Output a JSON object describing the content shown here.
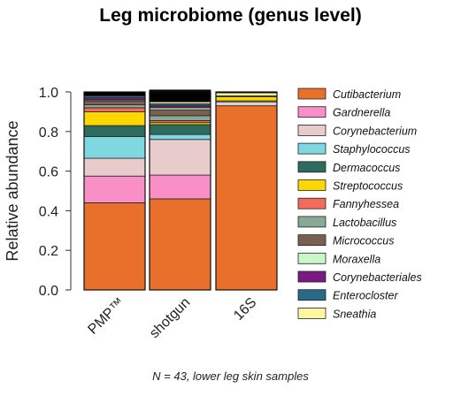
{
  "chart_data": {
    "type": "bar",
    "stacked": true,
    "title": "Leg microbiome (genus level)",
    "ylabel": "Relative abundance",
    "xlabel": "",
    "ylim": [
      0,
      1.0
    ],
    "yticks": [
      "0.0",
      "0.2",
      "0.4",
      "0.6",
      "0.8",
      "1.0"
    ],
    "categories": [
      "PMP™",
      "shotgun",
      "16S"
    ],
    "series": [
      {
        "name": "Cutibacterium",
        "color": "#e8702a",
        "values": [
          0.44,
          0.46,
          0.93
        ]
      },
      {
        "name": "Gardnerella",
        "color": "#f98fc6",
        "values": [
          0.135,
          0.12,
          0.0
        ]
      },
      {
        "name": "Corynebacterium",
        "color": "#e8cccc",
        "values": [
          0.09,
          0.18,
          0.02
        ]
      },
      {
        "name": "Staphylococcus",
        "color": "#7fd8e0",
        "values": [
          0.11,
          0.025,
          0.005
        ]
      },
      {
        "name": "Dermacoccus",
        "color": "#2d6b5e",
        "values": [
          0.055,
          0.05,
          0.0
        ]
      },
      {
        "name": "Streptococcus",
        "color": "#ffd700",
        "values": [
          0.07,
          0.01,
          0.02
        ]
      },
      {
        "name": "Fannyhessea",
        "color": "#f26b5b",
        "values": [
          0.02,
          0.01,
          0.0
        ]
      },
      {
        "name": "Lactobacillus",
        "color": "#8aa898",
        "values": [
          0.015,
          0.025,
          0.005
        ]
      },
      {
        "name": "Micrococcus",
        "color": "#7a6050",
        "values": [
          0.02,
          0.03,
          0.0
        ]
      },
      {
        "name": "Moraxella",
        "color": "#ccf5c8",
        "values": [
          0.005,
          0.01,
          0.0
        ]
      },
      {
        "name": "Corynebacteriales",
        "color": "#7a1a80",
        "values": [
          0.01,
          0.01,
          0.0
        ]
      },
      {
        "name": "Enterocloster",
        "color": "#2b6a86",
        "values": [
          0.01,
          0.01,
          0.0
        ]
      },
      {
        "name": "Sneathia",
        "color": "#fff8a0",
        "values": [
          0.0,
          0.01,
          0.015
        ]
      },
      {
        "name": "",
        "color": "#000000",
        "values": [
          0.02,
          0.06,
          0.005
        ]
      }
    ],
    "legend_position": "right",
    "grid": false
  },
  "footnote": "N = 43, lower leg skin samples"
}
